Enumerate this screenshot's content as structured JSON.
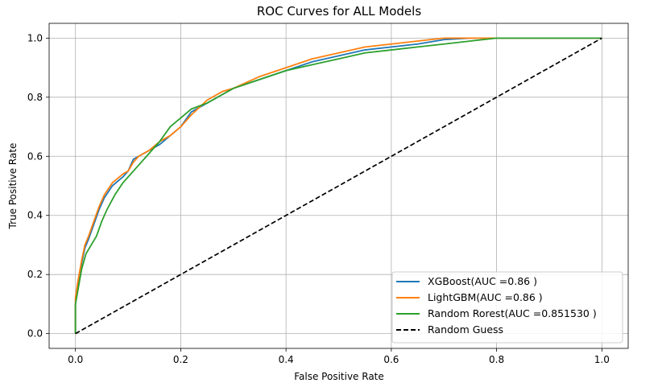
{
  "chart_data": {
    "type": "line",
    "title": "ROC Curves for ALL Models",
    "xlabel": "False Positive Rate",
    "ylabel": "True Positive Rate",
    "xlim": [
      -0.05,
      1.05
    ],
    "ylim": [
      -0.05,
      1.05
    ],
    "xticks": [
      "0.0",
      "0.2",
      "0.4",
      "0.6",
      "0.8",
      "1.0"
    ],
    "yticks": [
      "0.0",
      "0.2",
      "0.4",
      "0.6",
      "0.8",
      "1.0"
    ],
    "grid": true,
    "legend_position": "lower-right",
    "series": [
      {
        "name": "XGBoost(AUC =0.86 )",
        "color": "#1f77b4",
        "style": "solid",
        "points": [
          [
            0,
            0
          ],
          [
            0,
            0.1
          ],
          [
            0.004,
            0.15
          ],
          [
            0.008,
            0.2
          ],
          [
            0.012,
            0.24
          ],
          [
            0.018,
            0.29
          ],
          [
            0.025,
            0.32
          ],
          [
            0.035,
            0.37
          ],
          [
            0.045,
            0.42
          ],
          [
            0.055,
            0.46
          ],
          [
            0.07,
            0.5
          ],
          [
            0.09,
            0.53
          ],
          [
            0.1,
            0.55
          ],
          [
            0.11,
            0.59
          ],
          [
            0.12,
            0.6
          ],
          [
            0.14,
            0.62
          ],
          [
            0.16,
            0.64
          ],
          [
            0.18,
            0.67
          ],
          [
            0.2,
            0.7
          ],
          [
            0.22,
            0.75
          ],
          [
            0.25,
            0.78
          ],
          [
            0.28,
            0.81
          ],
          [
            0.3,
            0.83
          ],
          [
            0.35,
            0.86
          ],
          [
            0.4,
            0.89
          ],
          [
            0.45,
            0.92
          ],
          [
            0.5,
            0.94
          ],
          [
            0.55,
            0.96
          ],
          [
            0.6,
            0.97
          ],
          [
            0.65,
            0.98
          ],
          [
            0.7,
            0.995
          ],
          [
            0.75,
            1.0
          ],
          [
            0.8,
            1.0
          ],
          [
            1.0,
            1.0
          ]
        ]
      },
      {
        "name": "LightGBM(AUC =0.86 )",
        "color": "#ff7f0e",
        "style": "solid",
        "points": [
          [
            0,
            0
          ],
          [
            0,
            0.12
          ],
          [
            0.004,
            0.17
          ],
          [
            0.008,
            0.21
          ],
          [
            0.012,
            0.25
          ],
          [
            0.018,
            0.3
          ],
          [
            0.025,
            0.33
          ],
          [
            0.035,
            0.38
          ],
          [
            0.045,
            0.43
          ],
          [
            0.055,
            0.47
          ],
          [
            0.07,
            0.51
          ],
          [
            0.09,
            0.54
          ],
          [
            0.1,
            0.55
          ],
          [
            0.11,
            0.58
          ],
          [
            0.12,
            0.6
          ],
          [
            0.14,
            0.62
          ],
          [
            0.16,
            0.65
          ],
          [
            0.18,
            0.67
          ],
          [
            0.2,
            0.7
          ],
          [
            0.22,
            0.74
          ],
          [
            0.25,
            0.79
          ],
          [
            0.28,
            0.82
          ],
          [
            0.3,
            0.83
          ],
          [
            0.35,
            0.87
          ],
          [
            0.4,
            0.9
          ],
          [
            0.45,
            0.93
          ],
          [
            0.5,
            0.95
          ],
          [
            0.55,
            0.97
          ],
          [
            0.6,
            0.98
          ],
          [
            0.65,
            0.99
          ],
          [
            0.7,
            1.0
          ],
          [
            0.8,
            1.0
          ],
          [
            1.0,
            1.0
          ]
        ]
      },
      {
        "name": "Random Rorest(AUC =0.851530 )",
        "color": "#2ca02c",
        "style": "solid",
        "points": [
          [
            0,
            0
          ],
          [
            0,
            0.1
          ],
          [
            0.004,
            0.14
          ],
          [
            0.008,
            0.18
          ],
          [
            0.012,
            0.22
          ],
          [
            0.02,
            0.27
          ],
          [
            0.03,
            0.3
          ],
          [
            0.04,
            0.33
          ],
          [
            0.05,
            0.38
          ],
          [
            0.06,
            0.42
          ],
          [
            0.075,
            0.47
          ],
          [
            0.09,
            0.51
          ],
          [
            0.1,
            0.53
          ],
          [
            0.12,
            0.57
          ],
          [
            0.14,
            0.61
          ],
          [
            0.16,
            0.65
          ],
          [
            0.18,
            0.7
          ],
          [
            0.2,
            0.73
          ],
          [
            0.22,
            0.76
          ],
          [
            0.25,
            0.78
          ],
          [
            0.28,
            0.81
          ],
          [
            0.3,
            0.83
          ],
          [
            0.35,
            0.86
          ],
          [
            0.4,
            0.89
          ],
          [
            0.45,
            0.91
          ],
          [
            0.5,
            0.93
          ],
          [
            0.55,
            0.95
          ],
          [
            0.6,
            0.96
          ],
          [
            0.65,
            0.97
          ],
          [
            0.7,
            0.98
          ],
          [
            0.75,
            0.99
          ],
          [
            0.8,
            1.0
          ],
          [
            1.0,
            1.0
          ]
        ]
      },
      {
        "name": "Random Guess",
        "color": "#000000",
        "style": "dashed",
        "points": [
          [
            0,
            0
          ],
          [
            1,
            1
          ]
        ]
      }
    ]
  }
}
